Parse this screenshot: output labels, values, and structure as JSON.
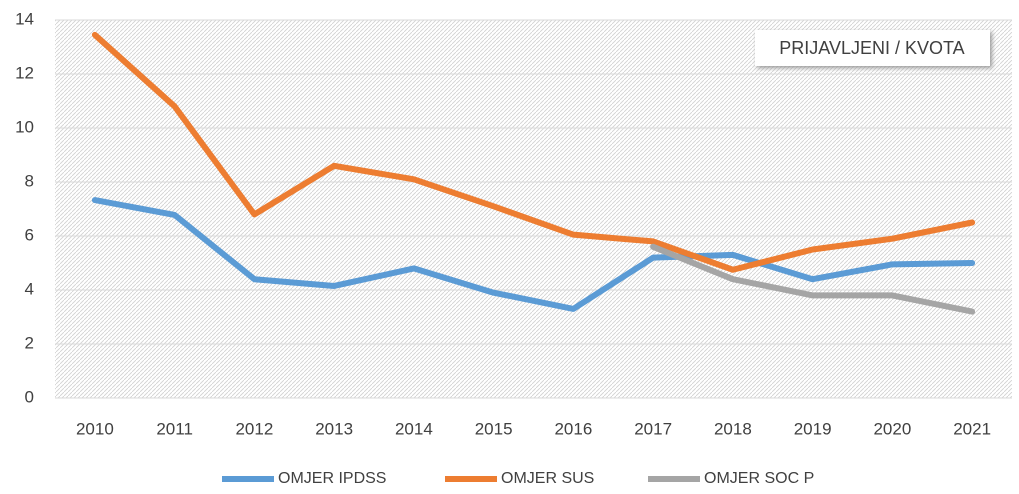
{
  "chart_data": {
    "type": "line",
    "annotation": "PRIJAVLJENI / KVOTA",
    "categories": [
      "2010",
      "2011",
      "2012",
      "2013",
      "2014",
      "2015",
      "2016",
      "2017",
      "2018",
      "2019",
      "2020",
      "2021"
    ],
    "series": [
      {
        "name": "OMJER IPDSS",
        "color": "#5b9bd5",
        "values": [
          7.33,
          6.78,
          4.4,
          4.15,
          4.8,
          3.9,
          3.3,
          5.2,
          5.3,
          4.4,
          4.95,
          5.0
        ]
      },
      {
        "name": "OMJER SUS",
        "color": "#ed7d31",
        "values": [
          13.45,
          10.8,
          6.8,
          8.6,
          8.1,
          7.1,
          6.05,
          5.8,
          4.75,
          5.5,
          5.9,
          6.5
        ]
      },
      {
        "name": "OMJER SOC P",
        "color": "#a5a5a5",
        "values": [
          null,
          null,
          null,
          null,
          null,
          null,
          null,
          5.6,
          4.4,
          3.8,
          3.8,
          3.2
        ]
      }
    ],
    "ylim": [
      0,
      14
    ],
    "yticks": [
      0,
      2,
      4,
      6,
      8,
      10,
      12,
      14
    ],
    "grid": true
  }
}
